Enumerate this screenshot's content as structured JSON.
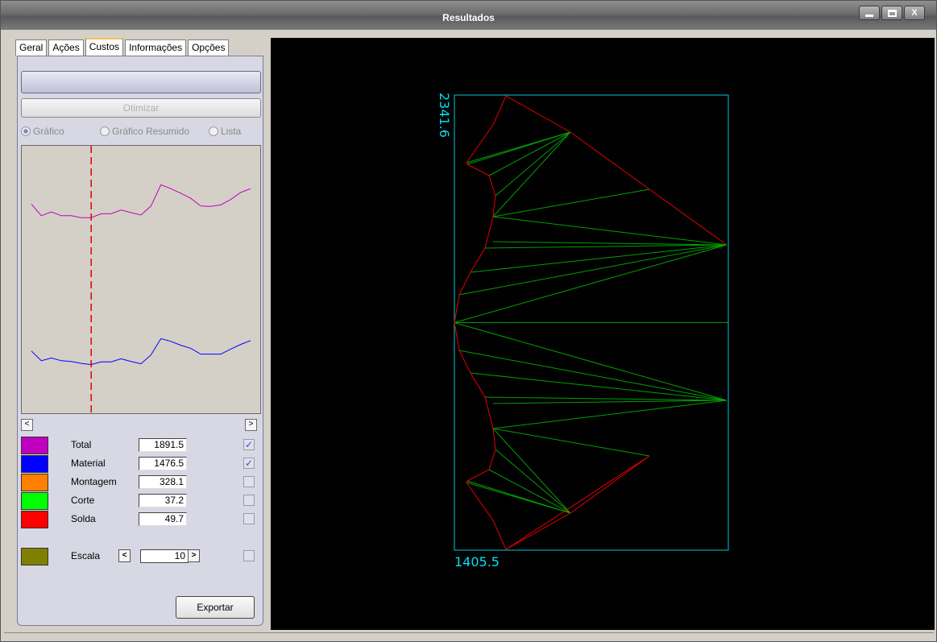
{
  "window": {
    "title": "Resultados",
    "minimize": "",
    "maximize": "",
    "close": "X"
  },
  "tabs": [
    {
      "label": "Geral",
      "active": false
    },
    {
      "label": "Ações",
      "active": false
    },
    {
      "label": "Custos",
      "active": true
    },
    {
      "label": "Informações",
      "active": false
    },
    {
      "label": "Opções",
      "active": false
    }
  ],
  "custos": {
    "otimizar_label": "Otimizar",
    "view_options": [
      {
        "label": "Gráfico",
        "selected": true
      },
      {
        "label": "Gráfico Resumido",
        "selected": false
      },
      {
        "label": "Lista",
        "selected": false
      }
    ],
    "scroll_left": "<",
    "scroll_right": ">",
    "rows": [
      {
        "label": "Total",
        "value": "1891.5",
        "color": "#c000c0",
        "checked": true
      },
      {
        "label": "Material",
        "value": "1476.5",
        "color": "#0000ff",
        "checked": true
      },
      {
        "label": "Montagem",
        "value": "328.1",
        "color": "#ff8000",
        "checked": false
      },
      {
        "label": "Corte",
        "value": "37.2",
        "color": "#00ff00",
        "checked": false
      },
      {
        "label": "Solda",
        "value": "49.7",
        "color": "#ff0000",
        "checked": false
      }
    ],
    "escala": {
      "label": "Escala",
      "value": "10",
      "color": "#808000",
      "dec": "<",
      "inc": ">",
      "checked": false
    },
    "exportar_label": "Exportar",
    "check_mark": "✓"
  },
  "chart_data": {
    "type": "line",
    "title": "",
    "xlabel": "",
    "ylabel": "",
    "marker_index": 6,
    "x": [
      0,
      1,
      2,
      3,
      4,
      5,
      6,
      7,
      8,
      9,
      10,
      11,
      12,
      13,
      14,
      15,
      16,
      17,
      18,
      19,
      20,
      21,
      22
    ],
    "series": [
      {
        "values": [
          1820,
          1790,
          1800,
          1790,
          1790,
          1785,
          1785,
          1795,
          1795,
          1805,
          1798,
          1792,
          1815,
          1870,
          1860,
          1848,
          1835,
          1815,
          1814,
          1818,
          1832,
          1850,
          1860
        ],
        "color": "#c000c0"
      },
      {
        "values": [
          1440,
          1415,
          1422,
          1415,
          1413,
          1408,
          1405,
          1412,
          1412,
          1420,
          1413,
          1407,
          1430,
          1472,
          1465,
          1455,
          1447,
          1432,
          1432,
          1432,
          1445,
          1457,
          1467
        ],
        "color": "#0000ff"
      }
    ],
    "ylim": [
      1300,
      1950
    ]
  },
  "drawing": {
    "height_label": "2341.6",
    "width_label": "1405.5",
    "frame_color": "#00c8d8",
    "outline_color": "#e00000",
    "member_color": "#00a000"
  }
}
